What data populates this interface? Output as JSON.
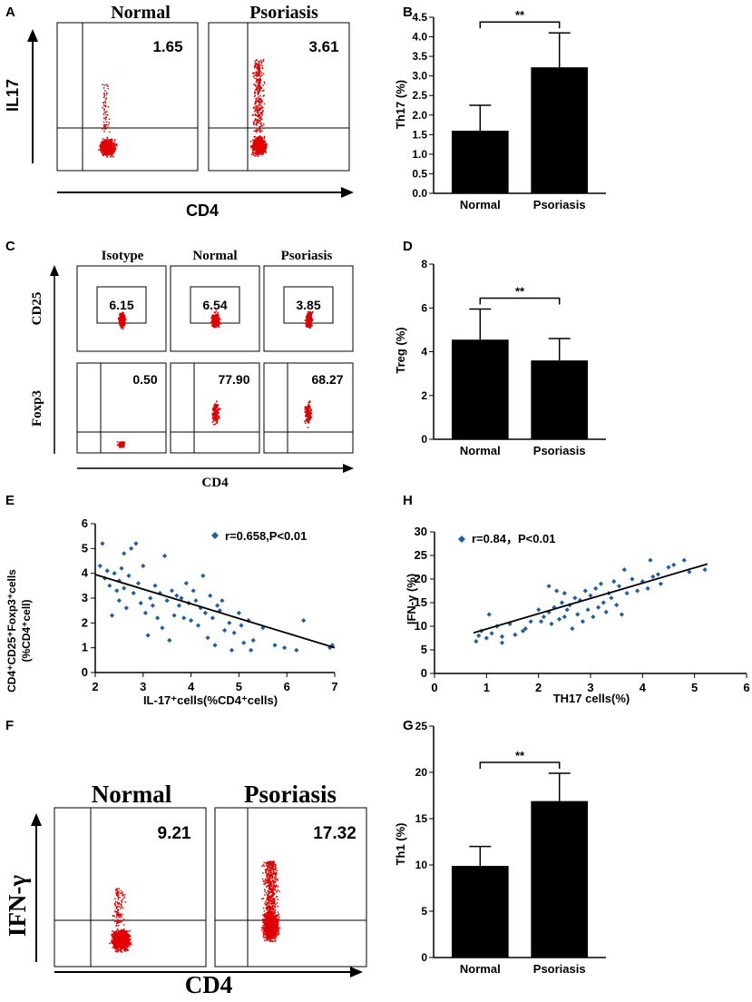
{
  "colors": {
    "dot": "#e00000",
    "blue": "#1f5fa0",
    "axis": "#000000"
  },
  "panels": {
    "A": {
      "letter": "A",
      "ylabel": "IL17",
      "xlabel": "CD4",
      "sub": [
        {
          "title": "Normal",
          "value": "1.65"
        },
        {
          "title": "Psoriasis",
          "value": "3.61"
        }
      ]
    },
    "C": {
      "letter": "C",
      "ylabel_top": "CD25",
      "ylabel_bottom": "Foxp3",
      "xlabel": "CD4",
      "cols": [
        "Isotype",
        "Normal",
        "Psoriasis"
      ],
      "top_values": [
        "6.15",
        "6.54",
        "3.85"
      ],
      "bottom_values": [
        "0.50",
        "77.90",
        "68.27"
      ]
    },
    "F": {
      "letter": "F",
      "ylabel": "IFN-γ",
      "xlabel": "CD4",
      "sub": [
        {
          "title": "Normal",
          "value": "9.21"
        },
        {
          "title": "Psoriasis",
          "value": "17.32"
        }
      ]
    }
  },
  "chart_data": [
    {
      "id": "B",
      "letter": "B",
      "type": "bar",
      "categories": [
        "Normal",
        "Psoriasis"
      ],
      "values": [
        1.6,
        3.22
      ],
      "errors": [
        0.65,
        0.88
      ],
      "ylabel": "Th17 (%)",
      "ylim": [
        0,
        4.5
      ],
      "yticks": [
        "0.0",
        "0.5",
        "1.0",
        "1.5",
        "2.0",
        "2.5",
        "3.0",
        "3.5",
        "4.0",
        "4.5"
      ],
      "significance": "**"
    },
    {
      "id": "D",
      "letter": "D",
      "type": "bar",
      "categories": [
        "Normal",
        "Psoriasis"
      ],
      "values": [
        4.55,
        3.6
      ],
      "errors": [
        1.4,
        1.0
      ],
      "ylabel": "Treg (%)",
      "ylim": [
        0,
        8
      ],
      "yticks": [
        "0",
        "2",
        "4",
        "6",
        "8"
      ],
      "significance": "**"
    },
    {
      "id": "E",
      "letter": "E",
      "type": "scatter",
      "xlabel": "IL-17⁺cells(%CD4⁺cells)",
      "ylabel": "CD4⁺CD25⁺Foxp3⁺cells",
      "ylabel2": "(%CD4⁺cell)",
      "xlim": [
        2,
        7
      ],
      "ylim": [
        0,
        6
      ],
      "xticks": [
        "2",
        "3",
        "4",
        "5",
        "6",
        "7"
      ],
      "yticks": [
        "0",
        "1",
        "2",
        "3",
        "4",
        "5",
        "6"
      ],
      "legend": "r=0.658,P<0.01",
      "fit": [
        [
          2.0,
          3.95
        ],
        [
          7.0,
          1.0
        ]
      ],
      "points": [
        [
          2.1,
          4.3
        ],
        [
          2.15,
          5.2
        ],
        [
          2.2,
          3.8
        ],
        [
          2.25,
          4.1
        ],
        [
          2.3,
          3.5
        ],
        [
          2.35,
          2.3
        ],
        [
          2.4,
          4.0
        ],
        [
          2.45,
          3.3
        ],
        [
          2.5,
          2.9
        ],
        [
          2.5,
          3.7
        ],
        [
          2.55,
          4.2
        ],
        [
          2.6,
          3.4
        ],
        [
          2.6,
          4.8
        ],
        [
          2.65,
          2.6
        ],
        [
          2.7,
          3.9
        ],
        [
          2.75,
          5.0
        ],
        [
          2.8,
          3.2
        ],
        [
          2.85,
          5.2
        ],
        [
          2.9,
          3.6
        ],
        [
          2.95,
          2.8
        ],
        [
          3.0,
          4.3
        ],
        [
          3.05,
          2.4
        ],
        [
          3.1,
          1.5
        ],
        [
          3.15,
          3.0
        ],
        [
          3.2,
          2.7
        ],
        [
          3.25,
          3.5
        ],
        [
          3.3,
          2.2
        ],
        [
          3.35,
          3.2
        ],
        [
          3.4,
          1.8
        ],
        [
          3.45,
          4.7
        ],
        [
          3.5,
          2.9
        ],
        [
          3.55,
          1.3
        ],
        [
          3.6,
          3.3
        ],
        [
          3.65,
          2.3
        ],
        [
          3.7,
          3.1
        ],
        [
          3.75,
          2.7
        ],
        [
          3.8,
          3.0
        ],
        [
          3.85,
          2.2
        ],
        [
          3.9,
          3.6
        ],
        [
          3.95,
          2.8
        ],
        [
          4.0,
          2.1
        ],
        [
          4.05,
          3.3
        ],
        [
          4.1,
          2.9
        ],
        [
          4.15,
          1.9
        ],
        [
          4.2,
          2.6
        ],
        [
          4.25,
          3.9
        ],
        [
          4.3,
          2.4
        ],
        [
          4.35,
          1.4
        ],
        [
          4.4,
          3.1
        ],
        [
          4.45,
          2.2
        ],
        [
          4.5,
          1.1
        ],
        [
          4.55,
          2.7
        ],
        [
          4.6,
          2.5
        ],
        [
          4.65,
          2.9
        ],
        [
          4.7,
          1.7
        ],
        [
          4.8,
          2.0
        ],
        [
          4.85,
          0.9
        ],
        [
          4.9,
          1.6
        ],
        [
          5.0,
          2.4
        ],
        [
          5.05,
          1.9
        ],
        [
          5.1,
          1.2
        ],
        [
          5.2,
          2.1
        ],
        [
          5.25,
          0.9
        ],
        [
          5.3,
          1.3
        ],
        [
          5.5,
          1.8
        ],
        [
          5.75,
          1.1
        ],
        [
          5.95,
          1.0
        ],
        [
          6.2,
          0.9
        ],
        [
          6.35,
          2.1
        ],
        [
          6.95,
          1.1
        ],
        [
          6.9,
          1.0
        ]
      ]
    },
    {
      "id": "H",
      "letter": "H",
      "type": "scatter",
      "xlabel": "TH17 cells(%)",
      "ylabel": "IFN-γ (%)",
      "xlim": [
        0,
        6
      ],
      "ylim": [
        0,
        30
      ],
      "xticks": [
        "0",
        "1",
        "2",
        "3",
        "4",
        "5",
        "6"
      ],
      "yticks": [
        "0",
        "5",
        "10",
        "15",
        "20",
        "25",
        "30"
      ],
      "legend": "r=0.84，P<0.01",
      "fit": [
        [
          0.75,
          8.6
        ],
        [
          5.25,
          23.2
        ]
      ],
      "points": [
        [
          0.8,
          6.8
        ],
        [
          0.85,
          8.0
        ],
        [
          0.9,
          9.0
        ],
        [
          1.0,
          7.5
        ],
        [
          1.05,
          12.5
        ],
        [
          1.1,
          8.5
        ],
        [
          1.2,
          10.0
        ],
        [
          1.3,
          6.5
        ],
        [
          1.3,
          7.8
        ],
        [
          1.45,
          10.5
        ],
        [
          1.55,
          8.2
        ],
        [
          1.7,
          9.0
        ],
        [
          1.75,
          9.5
        ],
        [
          1.85,
          11.0
        ],
        [
          2.0,
          13.5
        ],
        [
          2.05,
          11.0
        ],
        [
          2.1,
          12.0
        ],
        [
          2.2,
          13.0
        ],
        [
          2.2,
          18.5
        ],
        [
          2.25,
          10.5
        ],
        [
          2.3,
          14.0
        ],
        [
          2.35,
          17.5
        ],
        [
          2.4,
          11.5
        ],
        [
          2.45,
          15.0
        ],
        [
          2.5,
          12.0
        ],
        [
          2.5,
          17.0
        ],
        [
          2.55,
          13.5
        ],
        [
          2.6,
          14.5
        ],
        [
          2.65,
          9.5
        ],
        [
          2.7,
          16.0
        ],
        [
          2.75,
          12.5
        ],
        [
          2.8,
          15.5
        ],
        [
          2.85,
          11.0
        ],
        [
          2.9,
          17.5
        ],
        [
          2.95,
          13.5
        ],
        [
          3.0,
          16.5
        ],
        [
          3.05,
          12.0
        ],
        [
          3.1,
          18.0
        ],
        [
          3.15,
          14.0
        ],
        [
          3.2,
          19.0
        ],
        [
          3.25,
          15.0
        ],
        [
          3.3,
          13.0
        ],
        [
          3.35,
          17.0
        ],
        [
          3.4,
          16.0
        ],
        [
          3.45,
          19.5
        ],
        [
          3.5,
          14.5
        ],
        [
          3.55,
          18.5
        ],
        [
          3.6,
          12.5
        ],
        [
          3.65,
          22.0
        ],
        [
          3.7,
          17.0
        ],
        [
          3.8,
          20.0
        ],
        [
          3.9,
          17.5
        ],
        [
          4.0,
          19.5
        ],
        [
          4.1,
          18.0
        ],
        [
          4.15,
          24.0
        ],
        [
          4.2,
          20.5
        ],
        [
          4.3,
          21.0
        ],
        [
          4.35,
          19.0
        ],
        [
          4.5,
          22.5
        ],
        [
          4.6,
          23.0
        ],
        [
          4.8,
          24.0
        ],
        [
          4.9,
          21.5
        ],
        [
          5.2,
          22.0
        ]
      ]
    },
    {
      "id": "G",
      "letter": "G",
      "type": "bar",
      "categories": [
        "Normal",
        "Psoriasis"
      ],
      "values": [
        9.9,
        16.9
      ],
      "errors": [
        2.1,
        3.0
      ],
      "ylabel": "Th1 (%)",
      "ylim": [
        0,
        25
      ],
      "yticks": [
        "0",
        "5",
        "10",
        "15",
        "20",
        "25"
      ],
      "significance": "**"
    }
  ]
}
